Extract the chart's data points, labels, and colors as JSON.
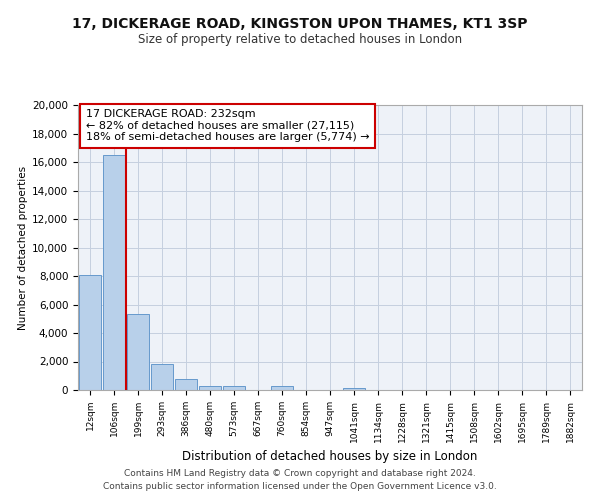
{
  "title_line1": "17, DICKERAGE ROAD, KINGSTON UPON THAMES, KT1 3SP",
  "title_line2": "Size of property relative to detached houses in London",
  "xlabel": "Distribution of detached houses by size in London",
  "ylabel": "Number of detached properties",
  "bar_labels": [
    "12sqm",
    "106sqm",
    "199sqm",
    "293sqm",
    "386sqm",
    "480sqm",
    "573sqm",
    "667sqm",
    "760sqm",
    "854sqm",
    "947sqm",
    "1041sqm",
    "1134sqm",
    "1228sqm",
    "1321sqm",
    "1415sqm",
    "1508sqm",
    "1602sqm",
    "1695sqm",
    "1789sqm",
    "1882sqm"
  ],
  "bar_heights": [
    8050,
    16500,
    5300,
    1800,
    750,
    300,
    300,
    0,
    300,
    0,
    0,
    130,
    0,
    0,
    0,
    0,
    0,
    0,
    0,
    0,
    0
  ],
  "bar_color": "#b8d0ea",
  "bar_edge_color": "#6699cc",
  "red_line_x": 1.5,
  "red_line_color": "#cc0000",
  "annotation_text": "17 DICKERAGE ROAD: 232sqm\n← 82% of detached houses are smaller (27,115)\n18% of semi-detached houses are larger (5,774) →",
  "annotation_box_facecolor": "#ffffff",
  "annotation_box_edgecolor": "#cc0000",
  "ylim": [
    0,
    20000
  ],
  "yticks": [
    0,
    2000,
    4000,
    6000,
    8000,
    10000,
    12000,
    14000,
    16000,
    18000,
    20000
  ],
  "footer_line1": "Contains HM Land Registry data © Crown copyright and database right 2024.",
  "footer_line2": "Contains public sector information licensed under the Open Government Licence v3.0.",
  "plot_bg_color": "#eef2f8",
  "grid_color": "#c5cfdf",
  "fig_bg_color": "#ffffff"
}
